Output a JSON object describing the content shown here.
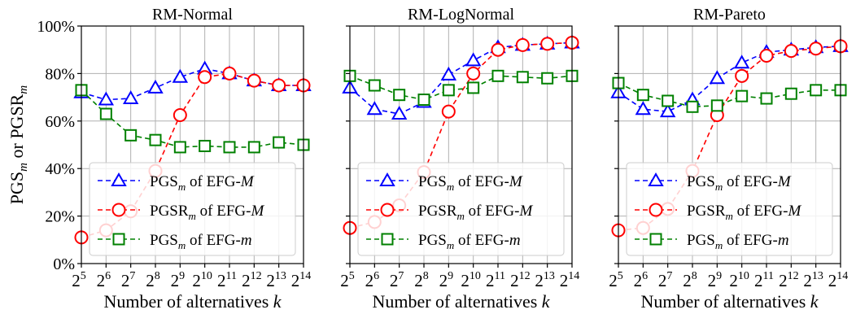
{
  "chart_data": [
    {
      "type": "line",
      "title": "RM-Normal",
      "xlabel": "Number of alternatives k",
      "ylabel": "PGSm or PGSRm",
      "x_base": "2",
      "x": [
        5,
        6,
        7,
        8,
        9,
        10,
        11,
        12,
        13,
        14
      ],
      "ylim": [
        0,
        100
      ],
      "yticks": [
        "0%",
        "20%",
        "40%",
        "60%",
        "80%",
        "100%"
      ],
      "grid": true,
      "legend": "lower-right",
      "series": [
        {
          "name": "PGSm of EFG-M",
          "color": "#0000ff",
          "marker": "triangle",
          "values": [
            72,
            69,
            69.5,
            74,
            78.5,
            82,
            80,
            77,
            75,
            75
          ]
        },
        {
          "name": "PGSRm of EFG-M",
          "color": "#ff0000",
          "marker": "circle",
          "values": [
            11,
            14,
            22,
            39,
            62.5,
            78.5,
            80,
            77,
            75,
            75
          ]
        },
        {
          "name": "PGSm of EFG-m",
          "color": "#008000",
          "marker": "square",
          "values": [
            73,
            63,
            54,
            52,
            49,
            49.5,
            49,
            49,
            51,
            50
          ]
        }
      ]
    },
    {
      "type": "line",
      "title": "RM-LogNormal",
      "xlabel": "Number of alternatives k",
      "x_base": "2",
      "x": [
        5,
        6,
        7,
        8,
        9,
        10,
        11,
        12,
        13,
        14
      ],
      "ylim": [
        0,
        100
      ],
      "grid": true,
      "legend": "lower-right",
      "series": [
        {
          "name": "PGSm of EFG-M",
          "color": "#0000ff",
          "marker": "triangle",
          "values": [
            74,
            65,
            63,
            68,
            79.5,
            85.5,
            91,
            92,
            92.5,
            93
          ]
        },
        {
          "name": "PGSRm of EFG-M",
          "color": "#ff0000",
          "marker": "circle",
          "values": [
            15,
            17.5,
            24.5,
            38.5,
            64,
            80,
            90,
            92,
            92.5,
            93
          ]
        },
        {
          "name": "PGSm of EFG-m",
          "color": "#008000",
          "marker": "square",
          "values": [
            79,
            75,
            71,
            69,
            73,
            74,
            79,
            78.5,
            78,
            79
          ]
        }
      ]
    },
    {
      "type": "line",
      "title": "RM-Pareto",
      "xlabel": "Number of alternatives k",
      "x_base": "2",
      "x": [
        5,
        6,
        7,
        8,
        9,
        10,
        11,
        12,
        13,
        14
      ],
      "ylim": [
        0,
        100
      ],
      "grid": true,
      "legend": "lower-right",
      "series": [
        {
          "name": "PGSm of EFG-M",
          "color": "#0000ff",
          "marker": "triangle",
          "values": [
            72,
            65,
            64,
            69,
            78,
            84.5,
            89,
            90,
            91,
            91.5
          ]
        },
        {
          "name": "PGSRm of EFG-M",
          "color": "#ff0000",
          "marker": "circle",
          "values": [
            14,
            15,
            23,
            39,
            62.5,
            79,
            87.5,
            89.5,
            90.5,
            91.5
          ]
        },
        {
          "name": "PGSm of EFG-m",
          "color": "#008000",
          "marker": "square",
          "values": [
            76,
            71,
            68.5,
            66,
            66.5,
            70.5,
            69.5,
            71.5,
            73,
            73
          ]
        }
      ]
    }
  ]
}
